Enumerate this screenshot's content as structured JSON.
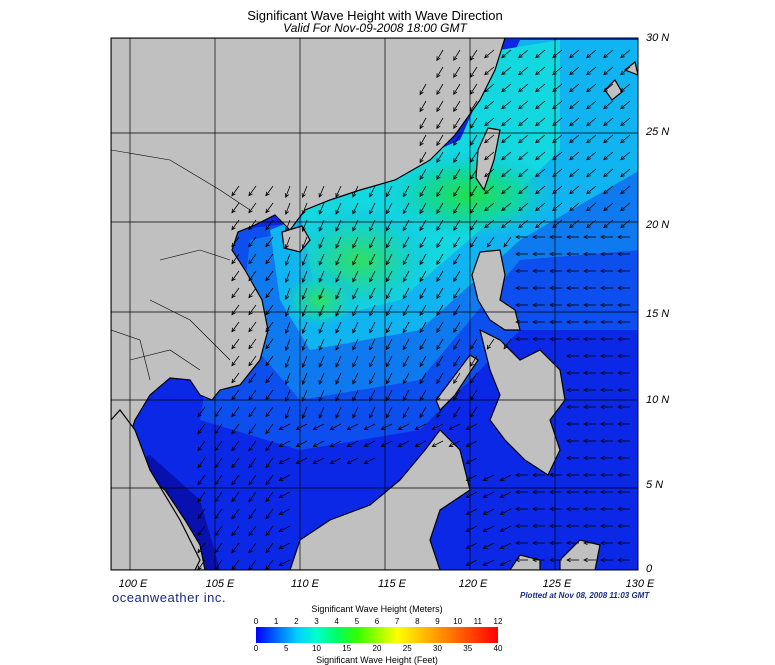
{
  "title": "Significant Wave Height with Wave Direction",
  "subtitle": "Valid For Nov-09-2008 18:00 GMT",
  "brand": "oceanweather inc.",
  "plotted": "Plotted at Nov 08, 2008 11:03 GMT",
  "lat_labels": [
    "30 N",
    "25 N",
    "20 N",
    "15 N",
    "10 N",
    "5 N",
    "0"
  ],
  "lon_labels": [
    "100 E",
    "105 E",
    "110 E",
    "115 E",
    "120 E",
    "125 E",
    "130 E"
  ],
  "colorbar": {
    "meters_title": "Significant Wave Height (Meters)",
    "feet_title": "Significant Wave Height (Feet)",
    "meters_ticks": [
      "0",
      "1",
      "2",
      "3",
      "4",
      "5",
      "6",
      "7",
      "8",
      "9",
      "10",
      "11",
      "12"
    ],
    "feet_ticks": [
      "0",
      "5",
      "10",
      "15",
      "20",
      "25",
      "30",
      "35",
      "40"
    ],
    "colors": [
      "#0000ff",
      "#0066ff",
      "#00ccff",
      "#00ffcc",
      "#00ff66",
      "#33ff00",
      "#99ff00",
      "#ffff00",
      "#ffcc00",
      "#ff9900",
      "#ff6600",
      "#ff3300",
      "#ff0000"
    ]
  },
  "map": {
    "land_color": "#c0c0c0",
    "low_wave_color": "#0a1ee0",
    "high_wave_color": "#22e07a"
  }
}
